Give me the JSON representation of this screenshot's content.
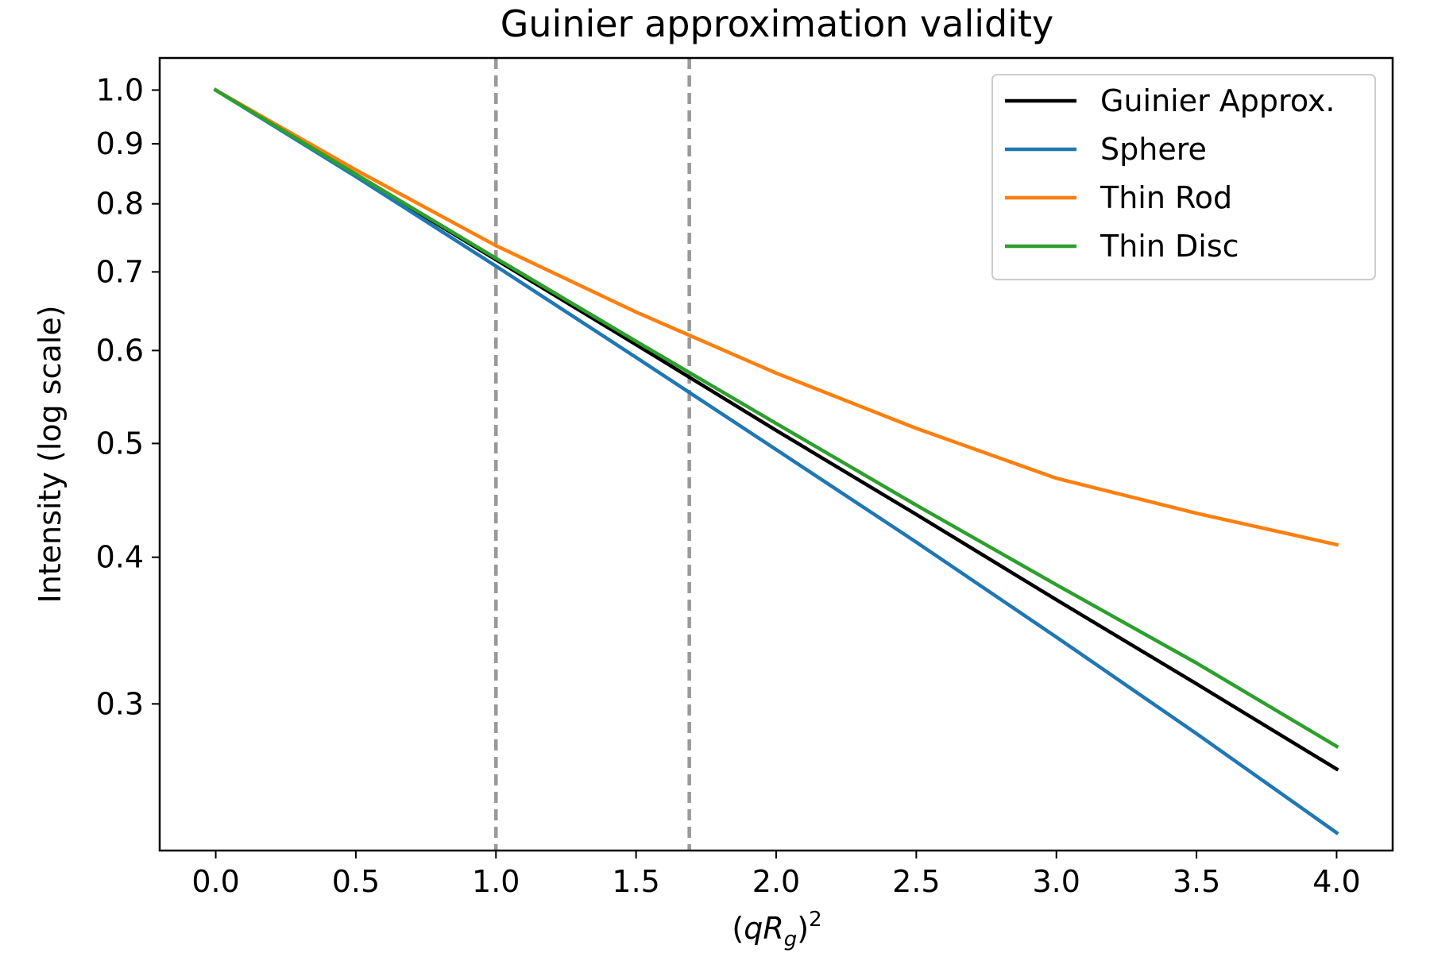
{
  "chart_data": {
    "type": "line",
    "title": "Guinier approximation validity",
    "xlabel_parts": {
      "open": "(",
      "q": "q",
      "R": "R",
      "sub": "g",
      "close": ")",
      "sup": "2"
    },
    "ylabel": "Intensity (log scale)",
    "yscale": "log",
    "xlim": [
      -0.2,
      4.2
    ],
    "ylim": [
      0.225,
      1.065
    ],
    "x_ticks": [
      0.0,
      0.5,
      1.0,
      1.5,
      2.0,
      2.5,
      3.0,
      3.5,
      4.0
    ],
    "x_tick_labels": [
      "0.0",
      "0.5",
      "1.0",
      "1.5",
      "2.0",
      "2.5",
      "3.0",
      "3.5",
      "4.0"
    ],
    "y_ticks": [
      0.3,
      0.4,
      0.5,
      0.6,
      0.7,
      0.8,
      0.9,
      1.0
    ],
    "y_tick_labels": [
      "0.3",
      "0.4",
      "0.5",
      "0.6",
      "0.7",
      "0.8",
      "0.9",
      "1.0"
    ],
    "vlines": [
      {
        "x": 1.0,
        "color": "#999999",
        "style": "dashed"
      },
      {
        "x": 1.69,
        "color": "#999999",
        "style": "dashed"
      }
    ],
    "legend_position": "top-right",
    "x": [
      0.0,
      0.5,
      1.0,
      1.5,
      2.0,
      2.5,
      3.0,
      3.5,
      4.0
    ],
    "series": [
      {
        "name": "Guinier Approx.",
        "color": "#000000",
        "values": [
          1.0,
          0.847,
          0.717,
          0.607,
          0.513,
          0.435,
          0.368,
          0.312,
          0.264
        ]
      },
      {
        "name": "Sphere",
        "color": "#1f77b4",
        "values": [
          1.0,
          0.844,
          0.708,
          0.592,
          0.494,
          0.412,
          0.342,
          0.283,
          0.233
        ]
      },
      {
        "name": "Thin Rod",
        "color": "#ff7f0e",
        "values": [
          1.0,
          0.855,
          0.737,
          0.647,
          0.574,
          0.515,
          0.467,
          0.436,
          0.41
        ]
      },
      {
        "name": "Thin Disc",
        "color": "#2ca02c",
        "values": [
          1.0,
          0.848,
          0.719,
          0.611,
          0.52,
          0.443,
          0.379,
          0.325,
          0.276
        ]
      }
    ]
  }
}
